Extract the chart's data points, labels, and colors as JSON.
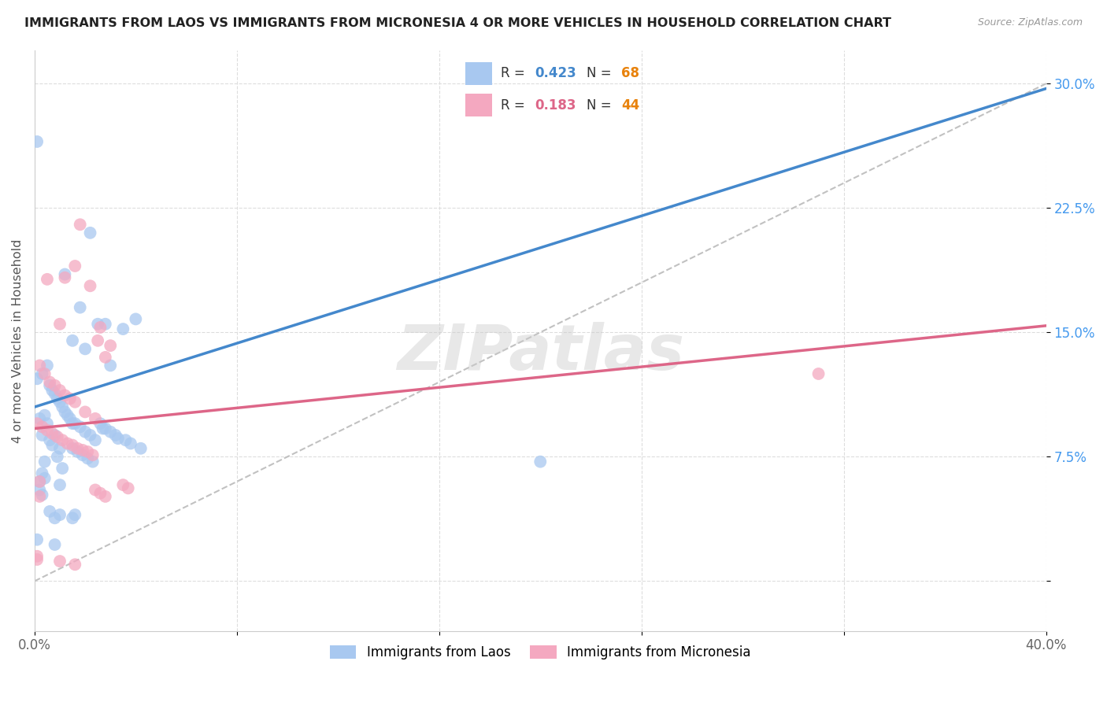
{
  "title": "IMMIGRANTS FROM LAOS VS IMMIGRANTS FROM MICRONESIA 4 OR MORE VEHICLES IN HOUSEHOLD CORRELATION CHART",
  "source": "Source: ZipAtlas.com",
  "ylabel": "4 or more Vehicles in Household",
  "xlim": [
    0.0,
    0.4
  ],
  "ylim": [
    -0.03,
    0.32
  ],
  "laos_color": "#A8C8F0",
  "micronesia_color": "#F4A8C0",
  "laos_line_color": "#4488CC",
  "micronesia_line_color": "#DD6688",
  "trend_line_color": "#BBBBBB",
  "background_color": "#FFFFFF",
  "laos_R": 0.423,
  "laos_N": 68,
  "micronesia_R": 0.183,
  "micronesia_N": 44,
  "N_color": "#E8820C",
  "R_color": "#4488CC",
  "ytick_color": "#4499EE",
  "laos_points_x": [
    0.001,
    0.002,
    0.002,
    0.003,
    0.003,
    0.003,
    0.004,
    0.004,
    0.004,
    0.005,
    0.005,
    0.006,
    0.006,
    0.006,
    0.007,
    0.007,
    0.008,
    0.008,
    0.008,
    0.009,
    0.009,
    0.01,
    0.01,
    0.01,
    0.011,
    0.011,
    0.012,
    0.012,
    0.013,
    0.014,
    0.015,
    0.015,
    0.015,
    0.016,
    0.016,
    0.017,
    0.018,
    0.018,
    0.019,
    0.02,
    0.02,
    0.021,
    0.022,
    0.022,
    0.023,
    0.024,
    0.025,
    0.026,
    0.027,
    0.028,
    0.028,
    0.03,
    0.03,
    0.032,
    0.033,
    0.035,
    0.036,
    0.038,
    0.04,
    0.042,
    0.001,
    0.002,
    0.008,
    0.015,
    0.2,
    0.001,
    0.003,
    0.01
  ],
  "laos_points_y": [
    0.265,
    0.098,
    0.06,
    0.088,
    0.065,
    0.052,
    0.1,
    0.072,
    0.062,
    0.13,
    0.095,
    0.118,
    0.085,
    0.042,
    0.115,
    0.082,
    0.113,
    0.088,
    0.038,
    0.11,
    0.075,
    0.108,
    0.08,
    0.058,
    0.105,
    0.068,
    0.185,
    0.102,
    0.1,
    0.098,
    0.145,
    0.095,
    0.08,
    0.095,
    0.04,
    0.078,
    0.165,
    0.093,
    0.076,
    0.14,
    0.09,
    0.074,
    0.21,
    0.088,
    0.072,
    0.085,
    0.155,
    0.095,
    0.092,
    0.155,
    0.092,
    0.13,
    0.09,
    0.088,
    0.086,
    0.152,
    0.085,
    0.083,
    0.158,
    0.08,
    0.025,
    0.055,
    0.022,
    0.038,
    0.072,
    0.122,
    0.125,
    0.04
  ],
  "micro_points_x": [
    0.001,
    0.001,
    0.002,
    0.002,
    0.003,
    0.004,
    0.005,
    0.005,
    0.006,
    0.007,
    0.008,
    0.009,
    0.01,
    0.01,
    0.011,
    0.012,
    0.012,
    0.013,
    0.014,
    0.015,
    0.016,
    0.016,
    0.017,
    0.018,
    0.019,
    0.02,
    0.021,
    0.022,
    0.023,
    0.024,
    0.025,
    0.026,
    0.028,
    0.03,
    0.31,
    0.001,
    0.002,
    0.024,
    0.026,
    0.028,
    0.035,
    0.037,
    0.016,
    0.01
  ],
  "micro_points_y": [
    0.095,
    0.015,
    0.13,
    0.06,
    0.093,
    0.125,
    0.182,
    0.091,
    0.12,
    0.089,
    0.118,
    0.087,
    0.115,
    0.012,
    0.085,
    0.183,
    0.112,
    0.083,
    0.11,
    0.082,
    0.108,
    0.19,
    0.08,
    0.215,
    0.079,
    0.102,
    0.078,
    0.178,
    0.076,
    0.098,
    0.145,
    0.053,
    0.135,
    0.142,
    0.125,
    0.013,
    0.051,
    0.055,
    0.153,
    0.051,
    0.058,
    0.056,
    0.01,
    0.155
  ]
}
